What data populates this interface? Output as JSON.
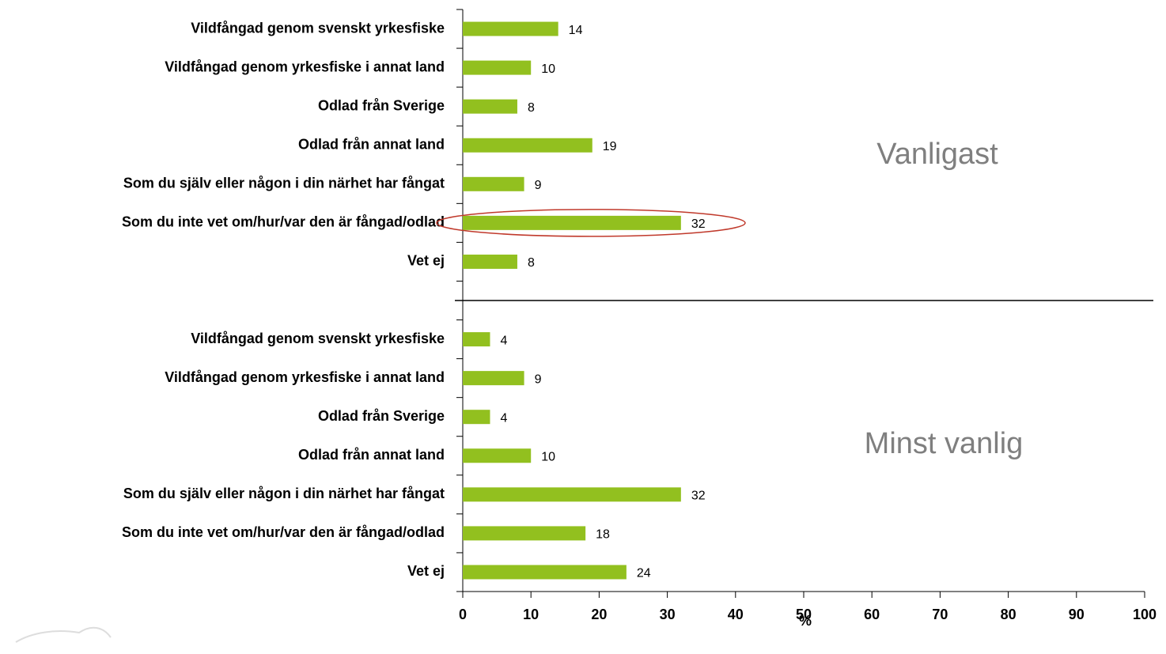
{
  "chart_data": {
    "type": "bar",
    "orientation": "horizontal",
    "categories": [
      "Vildfångad genom svenskt yrkesfiske",
      "Vildfångad genom yrkesfiske i annat land",
      "Odlad från Sverige",
      "Odlad från annat land",
      "Som du själv eller någon i din närhet har fångat",
      "Som du inte vet om/hur/var den är fångad/odlad",
      "Vet ej",
      null,
      "Vildfångad genom svenskt yrkesfiske",
      "Vildfångad genom yrkesfiske i annat land",
      "Odlad från Sverige",
      "Odlad från annat land",
      "Som du själv eller någon i din närhet har fångat",
      "Som du inte vet om/hur/var den är fångad/odlad",
      "Vet ej"
    ],
    "values": [
      14,
      10,
      8,
      19,
      9,
      32,
      8,
      null,
      4,
      9,
      4,
      10,
      32,
      18,
      24
    ],
    "color": "#92c01f",
    "xlim": [
      0,
      100
    ],
    "xticks": [
      0,
      10,
      20,
      30,
      40,
      50,
      60,
      70,
      80,
      90,
      100
    ],
    "xlabel": "%",
    "annotations": [
      "Vanligast",
      "Minst vanlig"
    ]
  }
}
